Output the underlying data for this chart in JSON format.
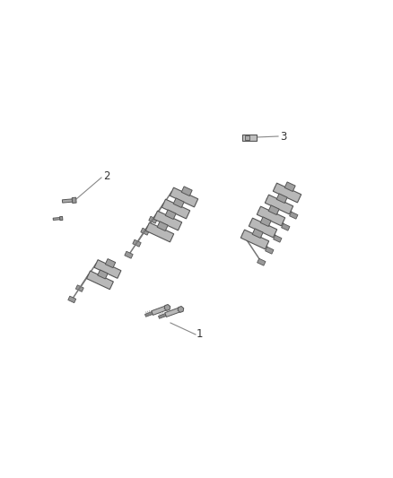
{
  "background_color": "#ffffff",
  "figure_width": 4.38,
  "figure_height": 5.33,
  "dpi": 100,
  "label1_text": "1",
  "label2_text": "2",
  "label3_text": "3",
  "line_color": "#888888",
  "component_color": "#555555",
  "gray_light": "#cccccc",
  "gray_mid": "#aaaaaa",
  "gray_dark": "#666666",
  "label_fontsize": 8.5,
  "coil_body_color": "#c0c0c0",
  "wire_color": "#888888",
  "plug_color": "#aaaaaa"
}
